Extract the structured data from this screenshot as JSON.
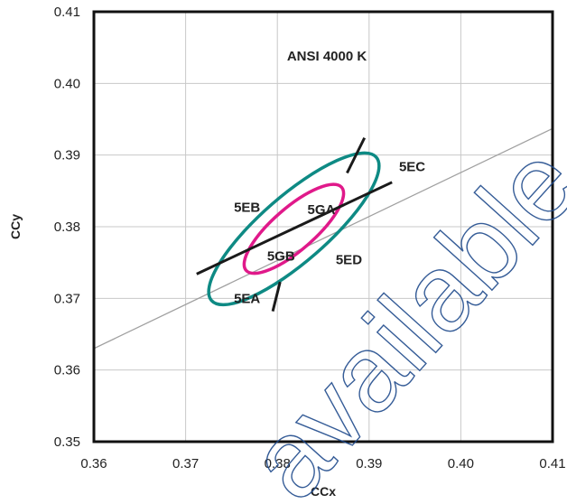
{
  "chart_data": {
    "type": "scatter",
    "title": "ANSI 4000 K",
    "xlabel": "CCx",
    "ylabel": "CCy",
    "xlim": [
      0.36,
      0.41
    ],
    "ylim": [
      0.35,
      0.41
    ],
    "x_ticks": [
      "0.36",
      "0.37",
      "0.38",
      "0.39",
      "0.40",
      "0.41"
    ],
    "y_ticks": [
      "0.35",
      "0.36",
      "0.37",
      "0.38",
      "0.39",
      "0.40",
      "0.41"
    ],
    "grid": true,
    "colors": {
      "outer_ellipse": "#0e8a84",
      "inner_ellipse": "#e0198a",
      "divider_lines": "#1a1a1a",
      "reference_line": "#a0a0a0",
      "watermark": "#1f4a8c"
    },
    "series": [
      {
        "role": "outer-ellipse",
        "center": [
          0.3818,
          0.3797
        ],
        "semi_axes": [
          0.0119,
          0.0036
        ],
        "angle_deg": 41
      },
      {
        "role": "inner-ellipse",
        "center": [
          0.3818,
          0.3797
        ],
        "semi_axes": [
          0.0069,
          0.0023
        ],
        "angle_deg": 41
      },
      {
        "role": "divider-line",
        "points": [
          [
            0.3712,
            0.3734
          ],
          [
            0.3925,
            0.3862
          ]
        ]
      },
      {
        "role": "divider-line",
        "points": [
          [
            0.3895,
            0.3924
          ],
          [
            0.3876,
            0.3875
          ]
        ]
      },
      {
        "role": "divider-line",
        "points": [
          [
            0.3803,
            0.3723
          ],
          [
            0.3795,
            0.3682
          ]
        ]
      },
      {
        "role": "reference-line",
        "points": [
          [
            0.36,
            0.363
          ],
          [
            0.41,
            0.3937
          ]
        ]
      }
    ],
    "annotations": [
      {
        "text": "5EA",
        "x": 0.3767,
        "y": 0.37
      },
      {
        "text": "5EB",
        "x": 0.3767,
        "y": 0.3827
      },
      {
        "text": "5EC",
        "x": 0.3947,
        "y": 0.3884
      },
      {
        "text": "5ED",
        "x": 0.3878,
        "y": 0.3754
      },
      {
        "text": "5GA",
        "x": 0.3848,
        "y": 0.3824
      },
      {
        "text": "5GB",
        "x": 0.3804,
        "y": 0.3759
      }
    ],
    "watermark": "available"
  }
}
